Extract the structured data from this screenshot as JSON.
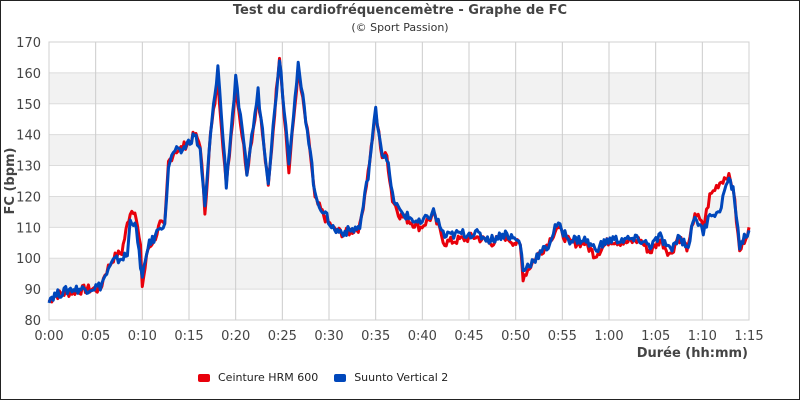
{
  "chart_data": {
    "type": "line",
    "title": "Test du cardiofréquencemètre - Graphe de FC",
    "subtitle": "(© Sport Passion)",
    "xlabel": "Durée (hh:mm)",
    "ylabel": "FC (bpm)",
    "xlim": [
      0,
      75
    ],
    "ylim": [
      80,
      170
    ],
    "x_ticks": [
      0,
      5,
      10,
      15,
      20,
      25,
      30,
      35,
      40,
      45,
      50,
      55,
      60,
      65,
      70,
      75
    ],
    "x_tick_labels": [
      "0:00",
      "0:05",
      "0:10",
      "0:15",
      "0:20",
      "0:25",
      "0:30",
      "0:35",
      "0:40",
      "0:45",
      "0:50",
      "0:55",
      "1:00",
      "1:05",
      "1:10",
      "1:15"
    ],
    "y_ticks": [
      80,
      90,
      100,
      110,
      120,
      130,
      140,
      150,
      160,
      170
    ],
    "grid": true,
    "legend": "bottom",
    "x_minutes": [
      0,
      0.6,
      2.3,
      3.9,
      5.5,
      6,
      6.9,
      7.8,
      8.4,
      8.7,
      9.2,
      9.8,
      10,
      10.6,
      11.4,
      11.9,
      12.4,
      12.8,
      13.5,
      14,
      15.1,
      15.6,
      16.2,
      16.7,
      17.3,
      18.1,
      19,
      20,
      21.2,
      22.4,
      23.5,
      24.7,
      25.7,
      26.7,
      28,
      28.5,
      29.6,
      30.6,
      31.7,
      33.3,
      34.2,
      35,
      35.7,
      36.2,
      36.8,
      37.6,
      38.7,
      39.8,
      41.2,
      42.4,
      44,
      45.7,
      47.3,
      48.9,
      50.5,
      50.8,
      52.1,
      53.5,
      54.4,
      55.8,
      57.4,
      58.5,
      60.1,
      61.7,
      63.3,
      64.4,
      65.5,
      66.6,
      67.4,
      68.5,
      69.2,
      70.1,
      70.8,
      71.7,
      72.7,
      73.3,
      74,
      75
    ],
    "series": [
      {
        "name": "Ceinture HRM 600",
        "color": "#e8000b",
        "values": [
          86,
          88,
          89,
          90,
          90,
          95,
          100,
          102,
          111,
          115,
          116,
          103,
          91,
          103,
          107,
          111,
          110,
          131,
          135,
          135,
          138,
          140,
          137,
          115,
          140,
          158,
          123,
          156,
          128,
          153,
          123,
          166,
          128,
          161,
          134,
          119,
          113,
          109,
          108,
          110,
          128,
          147,
          133,
          133,
          119,
          114,
          112,
          110,
          114,
          105,
          106,
          107,
          105,
          107,
          104,
          94,
          100,
          105,
          110,
          105,
          105,
          101,
          106,
          105,
          106,
          102,
          106,
          101,
          107,
          103,
          115,
          110,
          120,
          124,
          127,
          123,
          102,
          110
        ]
      },
      {
        "name": "Suunto Vertical 2",
        "color": "#0047bb",
        "values": [
          87,
          88,
          90,
          90,
          91,
          94,
          99,
          100,
          101,
          112,
          112,
          98,
          93,
          104,
          107,
          111,
          110,
          130,
          135,
          134,
          138,
          140,
          135,
          116,
          140,
          162,
          124,
          158,
          128,
          154,
          125,
          165,
          132,
          162,
          135,
          120,
          114,
          109,
          108.5,
          110,
          127,
          148,
          134,
          133,
          120,
          115,
          113,
          111,
          115,
          107,
          108,
          108,
          106,
          108,
          105,
          96,
          100,
          104,
          111,
          106,
          106,
          103,
          106,
          106,
          106,
          104,
          107,
          102,
          107,
          104,
          114,
          108,
          115,
          114,
          125,
          123,
          104,
          109
        ]
      }
    ]
  }
}
